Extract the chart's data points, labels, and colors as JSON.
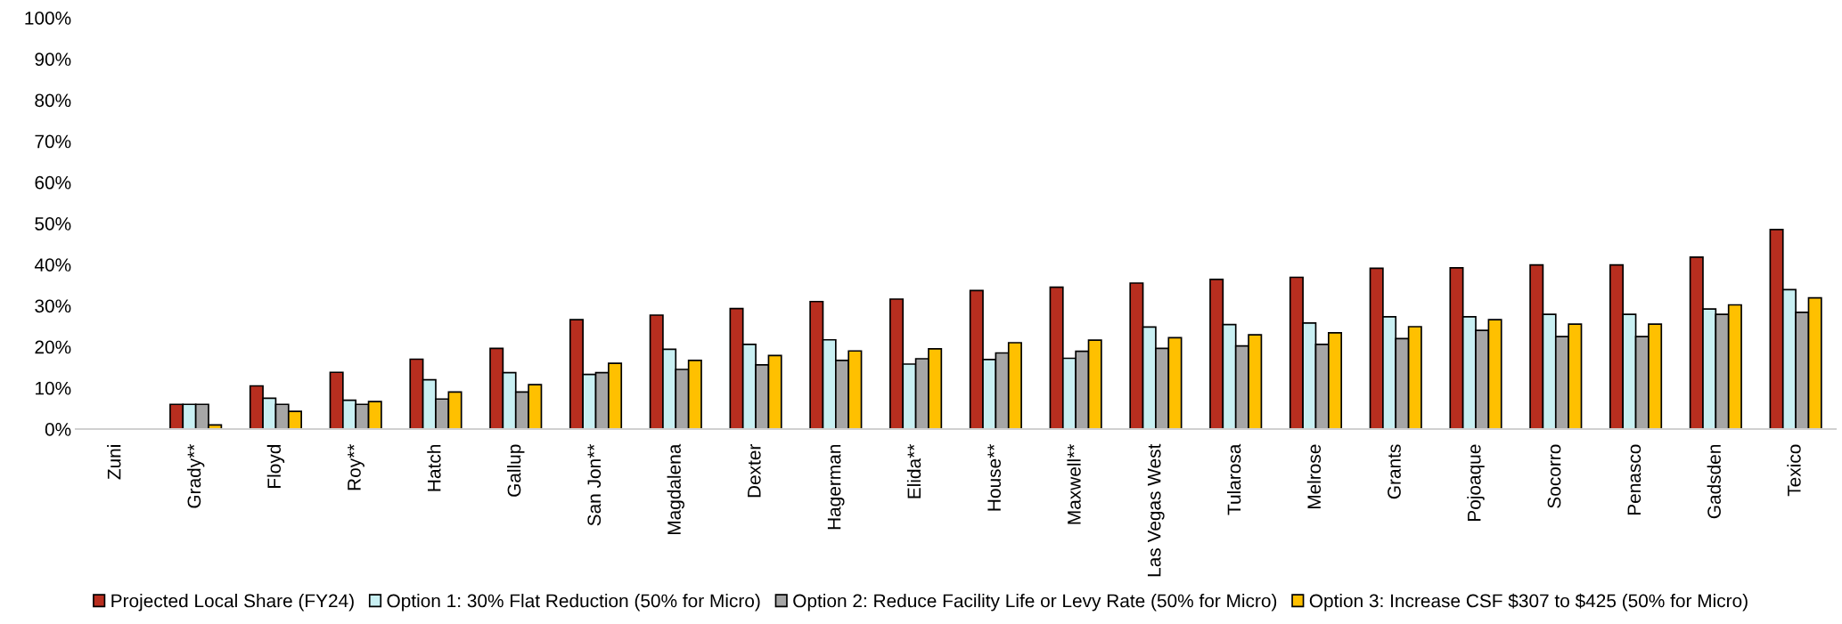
{
  "chart_data": {
    "type": "bar",
    "categories": [
      "Zuni",
      "Grady**",
      "Floyd",
      "Roy**",
      "Hatch",
      "Gallup",
      "San Jon**",
      "Magdalena",
      "Dexter",
      "Hagerman",
      "Elida**",
      "House**",
      "Maxwell**",
      "Las Vegas West",
      "Tularosa",
      "Melrose",
      "Grants",
      "Pojoaque",
      "Socorro",
      "Penasco",
      "Gadsden",
      "Texico"
    ],
    "series": [
      {
        "name": "Projected Local Share (FY24)",
        "color": "#b82e1f",
        "values": [
          null,
          6,
          10.5,
          13.8,
          17,
          19.6,
          26.6,
          27.7,
          29.3,
          31,
          31.6,
          33.7,
          34.5,
          35.5,
          36.4,
          36.9,
          39.1,
          39.2,
          39.9,
          39.9,
          41.8,
          48.5
        ]
      },
      {
        "name": "Option 1: 30% Flat Reduction (50% for Micro)",
        "color": "#c9f0f3",
        "values": [
          null,
          6,
          7.5,
          7,
          12,
          13.7,
          13.3,
          19.4,
          20.6,
          21.7,
          15.8,
          16.9,
          17.2,
          24.8,
          25.4,
          25.8,
          27.3,
          27.3,
          27.9,
          27.9,
          29.2,
          33.9
        ]
      },
      {
        "name": "Option 2: Reduce Facility Life or Levy Rate (50% for Micro)",
        "color": "#a6a6a6",
        "values": [
          null,
          6,
          6,
          6,
          7.3,
          9,
          13.7,
          14.5,
          15.6,
          16.7,
          17.1,
          18.5,
          18.9,
          19.6,
          20.2,
          20.6,
          22,
          24,
          22.5,
          22.5,
          27.9,
          28.4
        ]
      },
      {
        "name": "Option 3: Increase CSF $307 to $425 (50% for Micro)",
        "color": "#ffc000",
        "values": [
          null,
          1,
          4.3,
          6.7,
          9,
          10.8,
          16,
          16.7,
          17.9,
          19,
          19.5,
          21,
          21.6,
          22.2,
          22.9,
          23.4,
          24.9,
          26.6,
          25.5,
          25.5,
          30.2,
          31.9
        ]
      }
    ],
    "ylim": [
      0,
      100
    ],
    "yticks": [
      {
        "value": 0,
        "label": "0%"
      },
      {
        "value": 10,
        "label": "10%"
      },
      {
        "value": 20,
        "label": "20%"
      },
      {
        "value": 30,
        "label": "30%"
      },
      {
        "value": 40,
        "label": "40%"
      },
      {
        "value": 50,
        "label": "50%"
      },
      {
        "value": 60,
        "label": "60%"
      },
      {
        "value": 70,
        "label": "70%"
      },
      {
        "value": 80,
        "label": "80%"
      },
      {
        "value": 90,
        "label": "90%"
      },
      {
        "value": 100,
        "label": "100%"
      }
    ],
    "grid": false,
    "legend": "bottom"
  }
}
